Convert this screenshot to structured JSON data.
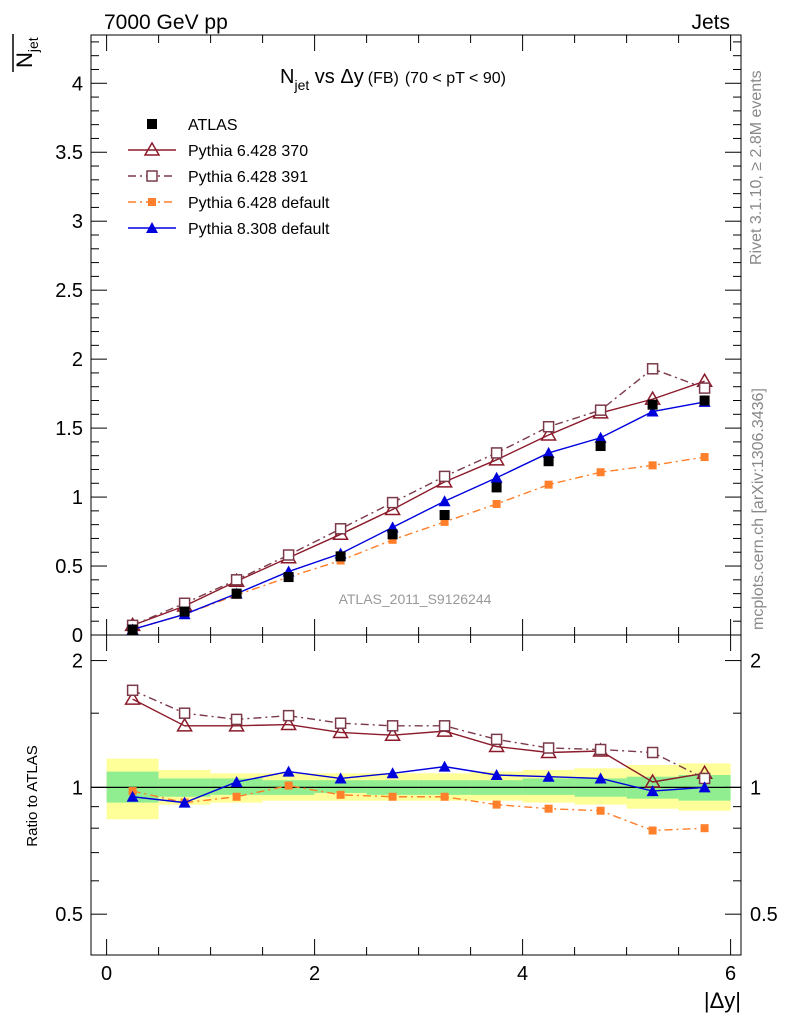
{
  "header": {
    "left": "7000 GeV pp",
    "right": "Jets"
  },
  "side_labels": {
    "rivet": "Rivet 3.1.10, ≥ 2.8M events",
    "mcplots": "mcplots.cern.ch [arXiv:1306.3436]"
  },
  "chart_data": [
    {
      "type": "line",
      "panel": "main",
      "title_main": "N",
      "title_sub": "jet",
      "title_rest": " vs Δy",
      "title_small": "(FB)",
      "title_range": "(70 < pT <  90)",
      "ylabel_main": "N",
      "ylabel_sub": "jet",
      "watermark": "ATLAS_2011_S9126244",
      "xlim": [
        -0.15,
        6.1
      ],
      "ylim": [
        0,
        4.35
      ],
      "yticks": [
        0,
        0.5,
        1,
        1.5,
        2,
        2.5,
        3,
        3.5,
        4
      ],
      "ytick_labels": [
        "0",
        "0.5",
        "1",
        "1.5",
        "2",
        "2.5",
        "3",
        "3.5",
        "4"
      ],
      "legend_position": "top-left",
      "x": [
        0.25,
        0.75,
        1.25,
        1.75,
        2.25,
        2.75,
        3.25,
        3.75,
        4.25,
        4.75,
        5.25,
        5.75
      ],
      "series": [
        {
          "name": "ATLAS",
          "color": "#000000",
          "marker": "square-filled",
          "line": "none",
          "values": [
            0.04,
            0.17,
            0.3,
            0.42,
            0.57,
            0.73,
            0.87,
            1.07,
            1.26,
            1.37,
            1.67,
            1.7
          ]
        },
        {
          "name": "Pythia 6.428 370",
          "color": "#8b1a2a",
          "marker": "triangle-open",
          "line": "solid",
          "values": [
            0.07,
            0.21,
            0.39,
            0.56,
            0.73,
            0.91,
            1.11,
            1.27,
            1.45,
            1.61,
            1.71,
            1.84
          ]
        },
        {
          "name": "Pythia 6.428 391",
          "color": "#7b3a4a",
          "marker": "square-open",
          "line": "dashdot",
          "values": [
            0.07,
            0.23,
            0.4,
            0.58,
            0.77,
            0.96,
            1.15,
            1.32,
            1.51,
            1.63,
            1.93,
            1.79
          ]
        },
        {
          "name": "Pythia 6.428 default",
          "color": "#ff7f2a",
          "marker": "square-small",
          "line": "dashdot",
          "values": [
            0.04,
            0.15,
            0.29,
            0.42,
            0.54,
            0.69,
            0.82,
            0.95,
            1.09,
            1.18,
            1.23,
            1.29
          ]
        },
        {
          "name": "Pythia 8.308 default",
          "color": "#0000dd",
          "marker": "triangle-filled",
          "line": "solid",
          "values": [
            0.04,
            0.15,
            0.3,
            0.46,
            0.59,
            0.78,
            0.97,
            1.14,
            1.32,
            1.43,
            1.62,
            1.69
          ]
        }
      ]
    },
    {
      "type": "line",
      "panel": "ratio",
      "ylabel": "Ratio to ATLAS",
      "xlabel": "|Δy|",
      "scale": "log",
      "xlim": [
        -0.15,
        6.1
      ],
      "ylim": [
        0.4,
        2.3
      ],
      "yticks": [
        0.5,
        1,
        2
      ],
      "ytick_labels": [
        "0.5",
        "1",
        "2"
      ],
      "xticks": [
        0,
        2,
        4,
        6
      ],
      "xtick_labels": [
        "0",
        "2",
        "4",
        "6"
      ],
      "band_x_edges": [
        0,
        0.5,
        1.0,
        1.5,
        2.0,
        2.5,
        3.0,
        3.5,
        4.0,
        4.5,
        5.0,
        5.5,
        6.0
      ],
      "band_inner": [
        [
          0.92,
          1.09
        ],
        [
          0.95,
          1.05
        ],
        [
          0.96,
          1.05
        ],
        [
          0.96,
          1.04
        ],
        [
          0.97,
          1.04
        ],
        [
          0.96,
          1.04
        ],
        [
          0.96,
          1.04
        ],
        [
          0.96,
          1.04
        ],
        [
          0.96,
          1.05
        ],
        [
          0.95,
          1.05
        ],
        [
          0.94,
          1.06
        ],
        [
          0.93,
          1.07
        ]
      ],
      "band_outer": [
        [
          0.84,
          1.17
        ],
        [
          0.91,
          1.1
        ],
        [
          0.92,
          1.08
        ],
        [
          0.93,
          1.08
        ],
        [
          0.93,
          1.08
        ],
        [
          0.93,
          1.08
        ],
        [
          0.93,
          1.08
        ],
        [
          0.93,
          1.09
        ],
        [
          0.92,
          1.1
        ],
        [
          0.91,
          1.11
        ],
        [
          0.89,
          1.13
        ],
        [
          0.88,
          1.14
        ]
      ],
      "band_colors": {
        "inner": "#90ee90",
        "outer": "#ffff99"
      },
      "x": [
        0.25,
        0.75,
        1.25,
        1.75,
        2.25,
        2.75,
        3.25,
        3.75,
        4.25,
        4.75,
        5.25,
        5.75
      ],
      "series": [
        {
          "name": "Pythia 6.428 370",
          "color": "#8b1a2a",
          "marker": "triangle-open",
          "line": "solid",
          "values": [
            1.62,
            1.4,
            1.4,
            1.41,
            1.35,
            1.33,
            1.36,
            1.25,
            1.21,
            1.22,
            1.03,
            1.08
          ]
        },
        {
          "name": "Pythia 6.428 391",
          "color": "#7b3a4a",
          "marker": "square-open",
          "line": "dashdot",
          "values": [
            1.7,
            1.5,
            1.45,
            1.48,
            1.42,
            1.4,
            1.4,
            1.3,
            1.24,
            1.23,
            1.21,
            1.05
          ]
        },
        {
          "name": "Pythia 6.428 default",
          "color": "#ff7f2a",
          "marker": "square-small",
          "line": "dashdot",
          "values": [
            0.98,
            0.92,
            0.95,
            1.01,
            0.96,
            0.95,
            0.95,
            0.91,
            0.89,
            0.88,
            0.79,
            0.8
          ]
        },
        {
          "name": "Pythia 8.308 default",
          "color": "#0000dd",
          "marker": "triangle-filled",
          "line": "solid",
          "values": [
            0.95,
            0.92,
            1.03,
            1.09,
            1.05,
            1.08,
            1.12,
            1.07,
            1.06,
            1.05,
            0.98,
            1.0
          ]
        }
      ]
    }
  ]
}
